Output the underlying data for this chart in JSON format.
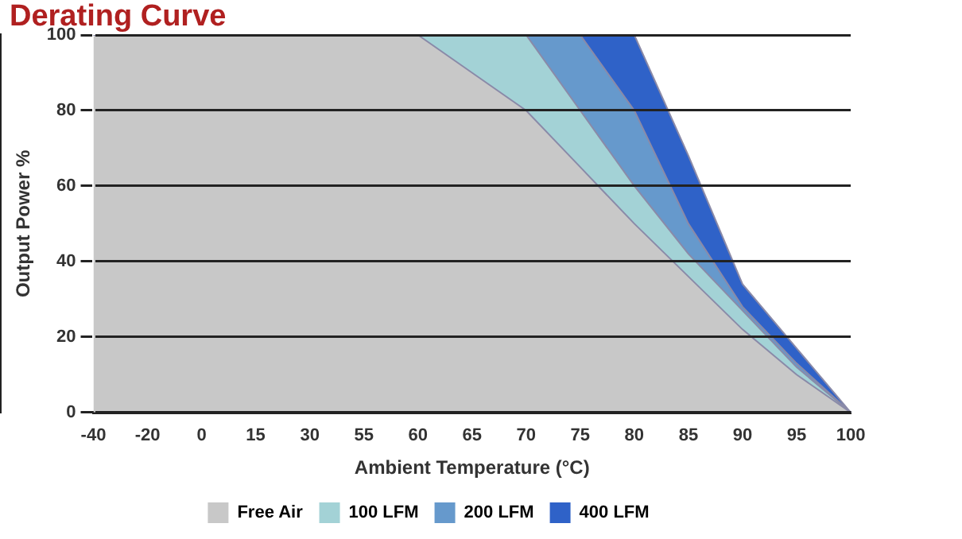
{
  "chart_data": {
    "type": "area",
    "title": "Derating Curve",
    "xlabel": "Ambient Temperature (°C)",
    "ylabel": "Output Power %",
    "categories": [
      "-40",
      "-20",
      "0",
      "15",
      "30",
      "55",
      "60",
      "65",
      "70",
      "75",
      "80",
      "85",
      "90",
      "95",
      "100"
    ],
    "series": [
      {
        "name": "Free Air",
        "color": "#c8c8c8",
        "values": [
          100,
          100,
          100,
          100,
          100,
          100,
          100,
          90,
          80,
          65,
          50,
          36,
          22,
          10,
          0
        ]
      },
      {
        "name": "100 LFM",
        "color": "#a3d2d6",
        "values": [
          null,
          null,
          null,
          null,
          null,
          null,
          100,
          100,
          100,
          80,
          60,
          42,
          27,
          12,
          0
        ]
      },
      {
        "name": "200 LFM",
        "color": "#6699cc",
        "values": [
          null,
          null,
          null,
          null,
          null,
          null,
          null,
          null,
          100,
          100,
          80,
          50,
          28,
          13,
          0
        ]
      },
      {
        "name": "400 LFM",
        "color": "#2f62c8",
        "values": [
          null,
          null,
          null,
          null,
          null,
          null,
          null,
          null,
          null,
          100,
          100,
          68,
          34,
          17,
          0
        ]
      }
    ],
    "ylim": [
      0,
      100
    ],
    "yticks": [
      0,
      20,
      40,
      60,
      80,
      100
    ],
    "grid": "y",
    "legend": "bottom"
  }
}
